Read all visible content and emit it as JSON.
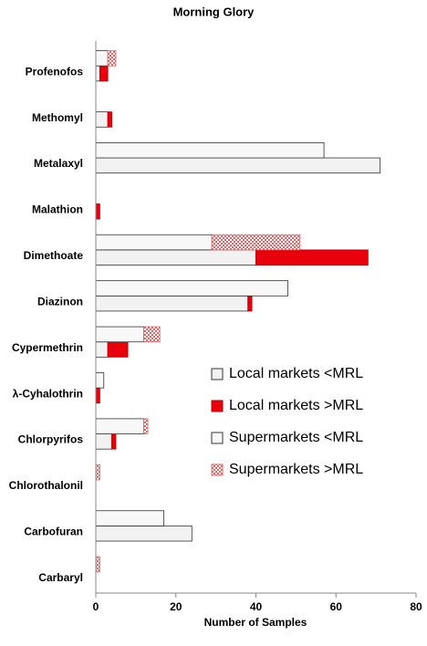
{
  "chart_data": {
    "type": "grouped-stacked-barh",
    "title": "Morning Glory",
    "xlabel": "Number of Samples",
    "categories": [
      "Profenofos",
      "Methomyl",
      "Metalaxyl",
      "Malathion",
      "Dimethoate",
      "Diazinon",
      "Cypermethrin",
      "λ-Cyhalothrin",
      "Chlorpyrifos",
      "Chlorothalonil",
      "Carbofuran",
      "Carbaryl"
    ],
    "series": [
      {
        "name": "Local markets <MRL",
        "group": "local",
        "color": "#f2f2f2",
        "values": [
          1,
          3,
          71,
          0,
          40,
          38,
          3,
          0,
          4,
          0,
          24,
          0
        ]
      },
      {
        "name": "Local markets >MRL",
        "group": "local",
        "color": "#e8000b",
        "values": [
          2,
          1,
          0,
          1,
          28,
          1,
          5,
          1,
          1,
          0,
          0,
          0
        ]
      },
      {
        "name": "Supermarkets <MRL",
        "group": "super",
        "color": "#f8f8f8",
        "values": [
          3,
          0,
          57,
          0,
          29,
          48,
          12,
          2,
          12,
          0,
          17,
          0
        ]
      },
      {
        "name": "Supermarkets >MRL",
        "group": "super",
        "color": "#e06666",
        "pattern": "checker",
        "values": [
          2,
          0,
          0,
          0,
          22,
          0,
          4,
          0,
          1,
          1,
          0,
          1
        ]
      }
    ],
    "xlim": [
      0,
      80
    ],
    "xticks": [
      0,
      20,
      40,
      60,
      80
    ],
    "legend": "right",
    "grid": false
  }
}
